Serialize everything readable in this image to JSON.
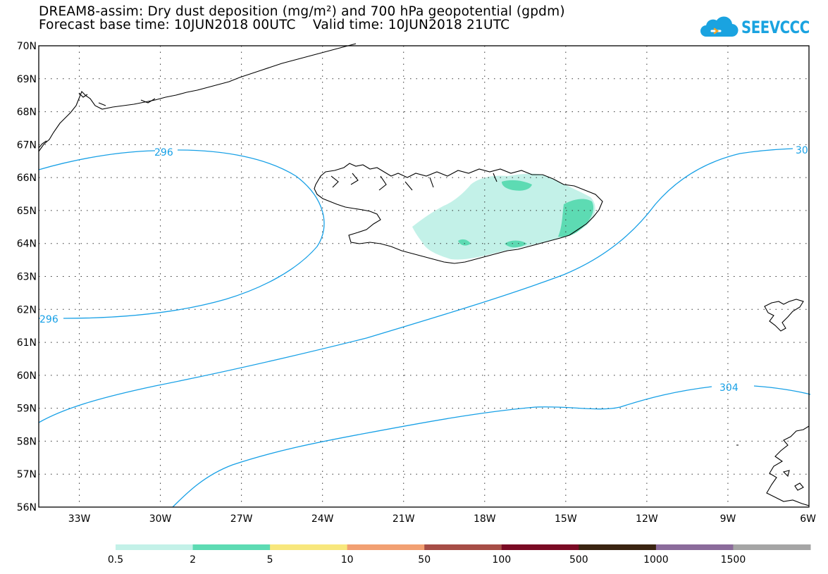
{
  "title": {
    "line1": "DREAM8-assim: Dry dust deposition (mg/m²) and 700 hPa geopotential (gpdm)",
    "line2": "Forecast base time: 10JUN2018 00UTC    Valid time: 10JUN2018 21UTC"
  },
  "logo": {
    "text": "SEEVCCC",
    "icon": "cloud-icon",
    "color": "#1aa3e0"
  },
  "map": {
    "lon_range": [
      -34.5,
      -6
    ],
    "lat_range": [
      56,
      70
    ],
    "lat_ticks": [
      "70N",
      "69N",
      "68N",
      "67N",
      "66N",
      "65N",
      "64N",
      "63N",
      "62N",
      "61N",
      "60N",
      "59N",
      "58N",
      "57N",
      "56N"
    ],
    "lon_ticks": [
      "33W",
      "30W",
      "27W",
      "24W",
      "21W",
      "18W",
      "15W",
      "12W",
      "9W",
      "6W"
    ],
    "grid": "dotted",
    "contour_color": "#17a0e6",
    "contours": [
      {
        "label": "296",
        "label_positions": [
          "top",
          "left"
        ]
      },
      {
        "label": "30",
        "note": "clipped at right edge"
      },
      {
        "label": "304"
      }
    ]
  },
  "colorbar": {
    "colors": [
      "#c3f1e8",
      "#5ddbb3",
      "#f8e77c",
      "#f2a072",
      "#a64d46",
      "#7a0a24",
      "#3a2411",
      "#8b6b9b",
      "#a5a5a5"
    ],
    "labels": [
      "0.5",
      "2",
      "5",
      "10",
      "50",
      "100",
      "500",
      "1000",
      "1500"
    ]
  }
}
